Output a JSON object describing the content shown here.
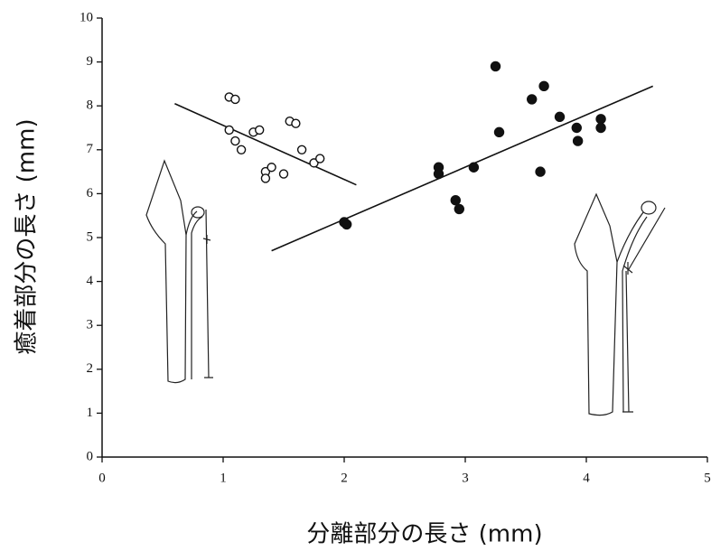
{
  "chart_data": {
    "type": "scatter",
    "x_label": "分離部分の長さ (mm)",
    "y_label": "癒着部分の長さ (mm)",
    "xlim": [
      0,
      5
    ],
    "ylim": [
      0,
      10
    ],
    "xticks": [
      0,
      1,
      2,
      3,
      4,
      5
    ],
    "yticks": [
      0,
      1,
      2,
      3,
      4,
      5,
      6,
      7,
      8,
      9,
      10
    ],
    "grid": false,
    "series": [
      {
        "marker": "open",
        "color": "#111111",
        "x": [
          1.05,
          1.1,
          1.05,
          1.1,
          1.15,
          1.25,
          1.3,
          1.35,
          1.4,
          1.35,
          1.5,
          1.55,
          1.6,
          1.65,
          1.75,
          1.8
        ],
        "values": [
          8.2,
          8.15,
          7.45,
          7.2,
          7.0,
          7.4,
          7.45,
          6.5,
          6.6,
          6.35,
          6.45,
          7.65,
          7.6,
          7.0,
          6.7,
          6.8
        ]
      },
      {
        "marker": "filled",
        "color": "#111111",
        "x": [
          2.0,
          2.02,
          2.78,
          2.78,
          2.92,
          2.95,
          3.07,
          3.25,
          3.28,
          3.55,
          3.62,
          3.65,
          3.78,
          3.92,
          3.93,
          4.12,
          4.12
        ],
        "values": [
          5.35,
          5.3,
          6.6,
          6.45,
          5.85,
          5.65,
          6.6,
          8.9,
          7.4,
          8.15,
          6.5,
          8.45,
          7.75,
          7.5,
          7.2,
          7.7,
          7.5
        ]
      }
    ],
    "fit_lines": [
      {
        "color": "#111111",
        "x": [
          0.6,
          2.1
        ],
        "values": [
          8.05,
          6.2
        ]
      },
      {
        "color": "#111111",
        "x": [
          1.4,
          4.55
        ],
        "values": [
          4.7,
          8.45
        ]
      }
    ]
  }
}
